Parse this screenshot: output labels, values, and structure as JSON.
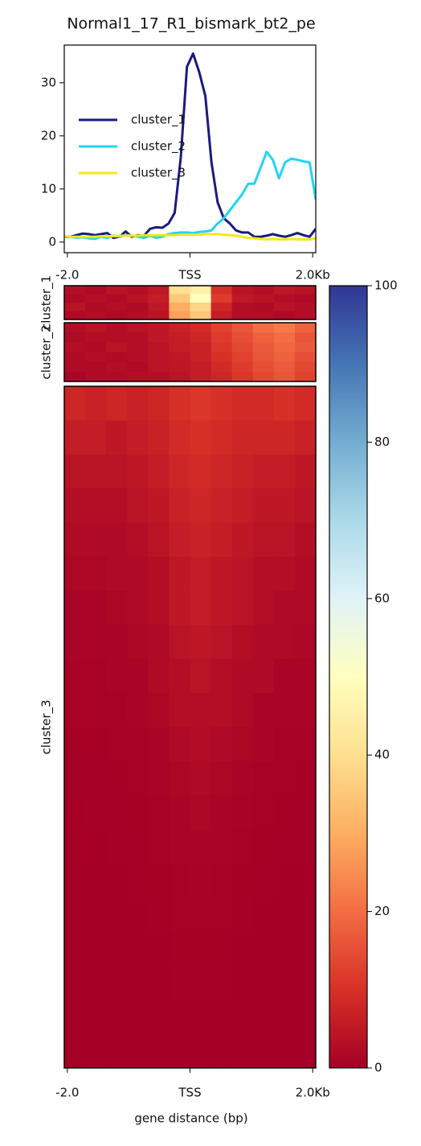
{
  "chart_data": [
    {
      "type": "line",
      "title": "Normal1_17_R1_bismark_bt2_pe",
      "x": [
        -2050,
        -1950,
        -1850,
        -1750,
        -1650,
        -1550,
        -1450,
        -1350,
        -1250,
        -1150,
        -1050,
        -950,
        -850,
        -750,
        -650,
        -550,
        -450,
        -350,
        -250,
        -150,
        -50,
        50,
        150,
        250,
        350,
        450,
        550,
        650,
        750,
        850,
        950,
        1050,
        1150,
        1250,
        1350,
        1450,
        1550,
        1650,
        1750,
        1850,
        1950,
        2050
      ],
      "series": [
        {
          "name": "cluster_1",
          "color": "#1a1a80",
          "values": [
            1,
            1,
            1.3,
            1.6,
            1.5,
            1.3,
            1.5,
            1.7,
            0.8,
            1,
            2,
            1,
            1.3,
            1.2,
            2.5,
            2.8,
            2.7,
            3.5,
            5.5,
            16,
            33,
            35.5,
            32,
            27.5,
            15,
            7.5,
            4.5,
            3.5,
            2.2,
            1.8,
            1.8,
            1,
            1,
            1.2,
            1.5,
            1.2,
            1,
            1.3,
            1.7,
            1.3,
            1,
            2.5
          ]
        },
        {
          "name": "cluster_2",
          "color": "#22d4f5",
          "values": [
            1,
            1,
            0.8,
            0.9,
            0.7,
            0.6,
            1,
            0.8,
            1.2,
            1,
            1.3,
            1.2,
            1,
            0.8,
            1.2,
            0.8,
            1,
            1.5,
            1.7,
            1.8,
            1.8,
            1.7,
            1.9,
            2,
            2.2,
            3.5,
            4.5,
            6,
            7.5,
            9,
            11,
            11,
            14,
            17,
            15.5,
            12,
            15,
            15.7,
            15.5,
            15.2,
            15,
            8
          ]
        },
        {
          "name": "cluster_3",
          "color": "#f5e61a",
          "values": [
            1.2,
            1,
            1,
            1,
            1,
            1,
            1.1,
            1.1,
            1.1,
            1.2,
            1.2,
            1.2,
            1.2,
            1.3,
            1.3,
            1.3,
            1.3,
            1.3,
            1.3,
            1.4,
            1.4,
            1.4,
            1.4,
            1.5,
            1.5,
            1.5,
            1.4,
            1.3,
            1.2,
            1,
            0.8,
            0.7,
            0.6,
            0.5,
            0.6,
            0.5,
            0.5,
            0.6,
            0.5,
            0.5,
            0.5,
            0.7
          ]
        }
      ],
      "xlim": [
        -2050,
        2050
      ],
      "xticks": [
        {
          "value": -2000,
          "label": "-2.0"
        },
        {
          "value": 0,
          "label": "TSS"
        },
        {
          "value": 2000,
          "label": "2.0Kb"
        }
      ],
      "ylim": [
        -2,
        37.1
      ],
      "yticks": [
        0,
        10,
        20,
        30
      ],
      "legend": "center left"
    },
    {
      "type": "heatmap",
      "xlabel": "gene distance (bp)",
      "xlim": [
        -2050,
        2050
      ],
      "xticks": [
        {
          "value": -2000,
          "label": "-2.0"
        },
        {
          "value": 0,
          "label": "TSS"
        },
        {
          "value": 2000,
          "label": "2.0Kb"
        }
      ],
      "rows": [
        {
          "name": "cluster_1",
          "values": [
            [
              3,
              2,
              4,
              3,
              5,
              40,
              45,
              10,
              4,
              3,
              5,
              4
            ],
            [
              2,
              3,
              2,
              4,
              6,
              35,
              50,
              12,
              5,
              4,
              3,
              2
            ],
            [
              4,
              2,
              3,
              2,
              5,
              30,
              38,
              8,
              3,
              2,
              4,
              3
            ],
            [
              2,
              3,
              2,
              3,
              4,
              28,
              35,
              6,
              3,
              3,
              2,
              3
            ]
          ]
        },
        {
          "name": "cluster_2",
          "values": [
            [
              3,
              4,
              3,
              4,
              5,
              7,
              9,
              13,
              16,
              20,
              22,
              18
            ],
            [
              2,
              3,
              3,
              3,
              5,
              6,
              8,
              12,
              15,
              18,
              20,
              16
            ],
            [
              3,
              2,
              4,
              3,
              4,
              6,
              7,
              11,
              14,
              17,
              19,
              17
            ],
            [
              2,
              3,
              2,
              3,
              4,
              5,
              7,
              10,
              13,
              16,
              18,
              15
            ],
            [
              2,
              2,
              3,
              2,
              4,
              5,
              6,
              9,
              12,
              15,
              17,
              14
            ],
            [
              1,
              2,
              2,
              3,
              3,
              4,
              6,
              8,
              11,
              14,
              16,
              13
            ]
          ]
        },
        {
          "name": "cluster_3",
          "values": [
            [
              8,
              7,
              8,
              7,
              8,
              10,
              11,
              10,
              9,
              9,
              10,
              9
            ],
            [
              6,
              6,
              5,
              6,
              7,
              9,
              10,
              9,
              8,
              8,
              8,
              7
            ],
            [
              4,
              4,
              4,
              5,
              6,
              8,
              9,
              8,
              7,
              6,
              6,
              5
            ],
            [
              3,
              3,
              3,
              4,
              5,
              7,
              8,
              7,
              6,
              5,
              5,
              4
            ],
            [
              2,
              2,
              2,
              3,
              4,
              6,
              7,
              6,
              5,
              4,
              4,
              3
            ],
            [
              1.5,
              1.5,
              2,
              2,
              3,
              5,
              6,
              5,
              4,
              3,
              3,
              2
            ],
            [
              1,
              1,
              1.5,
              2,
              3,
              5,
              6,
              5,
              4,
              3,
              2,
              2
            ],
            [
              1,
              1,
              1,
              1.5,
              2,
              4,
              5,
              4,
              3,
              2,
              2,
              1.5
            ],
            [
              0.5,
              0.5,
              1,
              1,
              2,
              3,
              4,
              3,
              2,
              2,
              1,
              1
            ],
            [
              0.5,
              0.5,
              0.5,
              1,
              1.5,
              3,
              3,
              3,
              2,
              1,
              1,
              1
            ],
            [
              0.3,
              0.3,
              0.5,
              0.5,
              1,
              2,
              2.5,
              2,
              1.5,
              1,
              0.5,
              0.5
            ],
            [
              0.2,
              0.2,
              0.3,
              0.5,
              1,
              1.5,
              2,
              1.5,
              1,
              0.5,
              0.5,
              0.3
            ],
            [
              0.1,
              0.2,
              0.2,
              0.3,
              0.5,
              1,
              1.5,
              1,
              0.8,
              0.5,
              0.3,
              0.2
            ],
            [
              0.1,
              0.1,
              0.2,
              0.2,
              0.5,
              1,
              1,
              1,
              0.5,
              0.3,
              0.2,
              0.2
            ],
            [
              0,
              0.1,
              0.1,
              0.2,
              0.3,
              0.5,
              0.8,
              0.5,
              0.3,
              0.2,
              0.1,
              0.1
            ],
            [
              0,
              0,
              0.1,
              0.1,
              0.2,
              0.5,
              0.5,
              0.5,
              0.2,
              0.1,
              0.1,
              0
            ],
            [
              0,
              0,
              0,
              0.1,
              0.1,
              0.3,
              0.3,
              0.3,
              0.1,
              0.1,
              0,
              0
            ],
            [
              0,
              0,
              0,
              0,
              0.1,
              0.2,
              0.2,
              0.2,
              0.1,
              0,
              0,
              0
            ],
            [
              0,
              0,
              0,
              0,
              0,
              0.1,
              0.1,
              0.1,
              0,
              0,
              0,
              0
            ],
            [
              0,
              0,
              0,
              0,
              0,
              0,
              0,
              0,
              0,
              0,
              0,
              0
            ]
          ]
        }
      ],
      "colorbar": {
        "lim": [
          0,
          100
        ],
        "ticks": [
          0,
          20,
          40,
          60,
          80,
          100
        ],
        "colors": [
          "#a50026",
          "#d73027",
          "#f46d43",
          "#fdae61",
          "#fee090",
          "#ffffbf",
          "#e0f3f8",
          "#abd9e9",
          "#74add1",
          "#4575b4",
          "#313695"
        ]
      }
    }
  ]
}
